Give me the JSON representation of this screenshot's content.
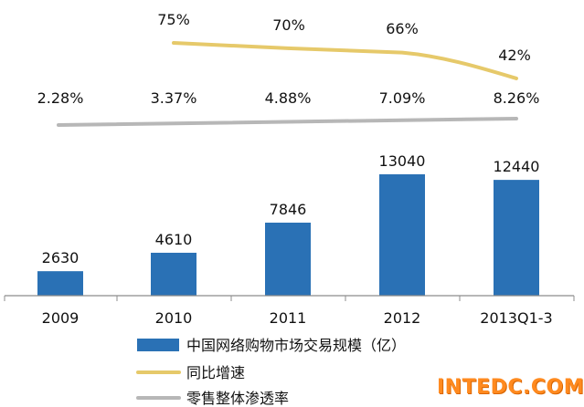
{
  "chart_data": {
    "type": "bar",
    "categories": [
      "2009",
      "2010",
      "2011",
      "2012",
      "2013Q1-3"
    ],
    "series": [
      {
        "name": "中国网络购物市场交易规模（亿）",
        "type": "bar",
        "values": [
          2630,
          4610,
          7846,
          13040,
          12440
        ],
        "labels": [
          "2630",
          "4610",
          "7846",
          "13040",
          "12440"
        ],
        "color": "#2a71b5"
      },
      {
        "name": "同比增速",
        "type": "line",
        "values": [
          null,
          75,
          70,
          66,
          42
        ],
        "labels": [
          null,
          "75%",
          "70%",
          "66%",
          "42%"
        ],
        "color": "#e6c96a"
      },
      {
        "name": "零售整体渗透率",
        "type": "line",
        "values": [
          2.28,
          3.37,
          4.88,
          7.09,
          8.26
        ],
        "labels": [
          "2.28%",
          "3.37%",
          "4.88%",
          "7.09%",
          "8.26%"
        ],
        "color": "#b7b7b7"
      }
    ],
    "grid": false,
    "legend_position": "bottom"
  },
  "watermark": "INTEDC.COM"
}
